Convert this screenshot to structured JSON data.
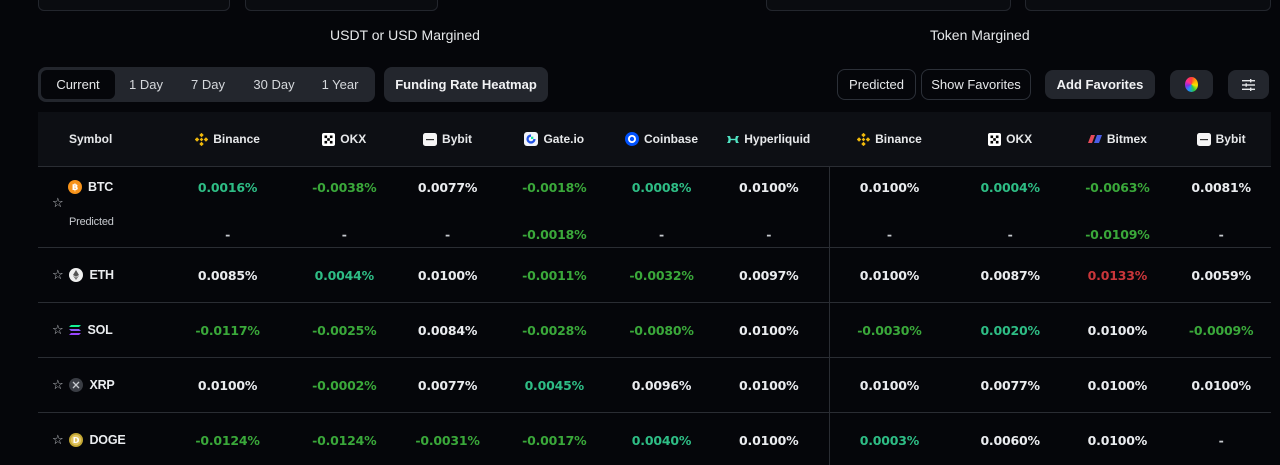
{
  "sections": {
    "usdt_title": "USDT or USD Margined",
    "token_title": "Token Margined"
  },
  "time_tabs": [
    {
      "label": "Current",
      "active": true
    },
    {
      "label": "1 Day",
      "active": false
    },
    {
      "label": "7 Day",
      "active": false
    },
    {
      "label": "30 Day",
      "active": false
    },
    {
      "label": "1 Year",
      "active": false
    }
  ],
  "toolbar": {
    "heatmap_label": "Funding Rate Heatmap",
    "predicted_label": "Predicted",
    "show_favorites_label": "Show Favorites",
    "add_favorites_label": "Add Favorites",
    "color_icon": "color-wheel-icon",
    "settings_icon": "sliders-icon"
  },
  "table": {
    "symbol_header": "Symbol",
    "predicted_label": "Predicted",
    "exchanges": [
      {
        "name": "Binance",
        "icon": "binance-icon",
        "group": "usdt"
      },
      {
        "name": "OKX",
        "icon": "okx-icon",
        "group": "usdt"
      },
      {
        "name": "Bybit",
        "icon": "bybit-icon",
        "group": "usdt"
      },
      {
        "name": "Gate.io",
        "icon": "gateio-icon",
        "group": "usdt"
      },
      {
        "name": "Coinbase",
        "icon": "coinbase-icon",
        "group": "usdt"
      },
      {
        "name": "Hyperliquid",
        "icon": "hyperliquid-icon",
        "group": "usdt"
      },
      {
        "name": "Binance",
        "icon": "binance-icon",
        "group": "token"
      },
      {
        "name": "OKX",
        "icon": "okx-icon",
        "group": "token"
      },
      {
        "name": "Bitmex",
        "icon": "bitmex-icon",
        "group": "token"
      },
      {
        "name": "Bybit",
        "icon": "bybit-icon",
        "group": "token"
      }
    ],
    "rows": [
      {
        "symbol": "BTC",
        "icon": "btc-icon",
        "values": [
          "0.0016%",
          "-0.0038%",
          "0.0077%",
          "-0.0018%",
          "0.0008%",
          "0.0100%",
          "0.0100%",
          "0.0004%",
          "-0.0063%",
          "0.0081%"
        ],
        "styles": [
          "pos",
          "neg",
          "neu",
          "neg",
          "pos",
          "neu",
          "neu",
          "pos",
          "neg",
          "neu"
        ],
        "predicted": [
          "-",
          "-",
          "-",
          "-0.0018%",
          "-",
          "-",
          "-",
          "-",
          "-0.0109%",
          "-"
        ],
        "predicted_styles": [
          "dash",
          "dash",
          "dash",
          "neg",
          "dash",
          "dash",
          "dash",
          "dash",
          "neg",
          "dash"
        ]
      },
      {
        "symbol": "ETH",
        "icon": "eth-icon",
        "values": [
          "0.0085%",
          "0.0044%",
          "0.0100%",
          "-0.0011%",
          "-0.0032%",
          "0.0097%",
          "0.0100%",
          "0.0087%",
          "0.0133%",
          "0.0059%"
        ],
        "styles": [
          "neu",
          "pos",
          "neu",
          "neg",
          "neg",
          "neu",
          "neu",
          "neu",
          "hi",
          "neu"
        ]
      },
      {
        "symbol": "SOL",
        "icon": "sol-icon",
        "values": [
          "-0.0117%",
          "-0.0025%",
          "0.0084%",
          "-0.0028%",
          "-0.0080%",
          "0.0100%",
          "-0.0030%",
          "0.0020%",
          "0.0100%",
          "-0.0009%"
        ],
        "styles": [
          "neg",
          "neg",
          "neu",
          "neg",
          "neg",
          "neu",
          "neg",
          "pos",
          "neu",
          "neg"
        ]
      },
      {
        "symbol": "XRP",
        "icon": "xrp-icon",
        "values": [
          "0.0100%",
          "-0.0002%",
          "0.0077%",
          "0.0045%",
          "0.0096%",
          "0.0100%",
          "0.0100%",
          "0.0077%",
          "0.0100%",
          "0.0100%"
        ],
        "styles": [
          "neu",
          "neg",
          "neu",
          "pos",
          "neu",
          "neu",
          "neu",
          "neu",
          "neu",
          "neu"
        ]
      },
      {
        "symbol": "DOGE",
        "icon": "doge-icon",
        "values": [
          "-0.0124%",
          "-0.0124%",
          "-0.0031%",
          "-0.0017%",
          "0.0040%",
          "0.0100%",
          "0.0003%",
          "0.0060%",
          "0.0100%",
          "-"
        ],
        "styles": [
          "neg",
          "neg",
          "neg",
          "neg",
          "pos",
          "neu",
          "pos",
          "neu",
          "neu",
          "dash"
        ]
      }
    ]
  },
  "colors": {
    "positive_small": "#2ebd85",
    "negative": "#3aa83a",
    "neutral": "#eaecef",
    "high": "#c9363a",
    "background": "#05060a",
    "header_bg": "#0d0f14",
    "button_bg": "#23262d"
  }
}
